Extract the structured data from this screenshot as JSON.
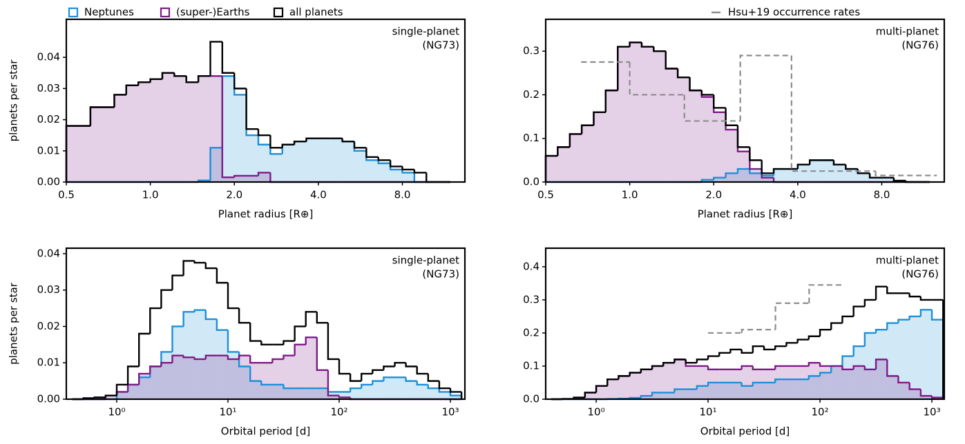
{
  "chart_data": [
    {
      "type": "histogram",
      "xlabel": "Planet radius [R⊕]",
      "ylabel": "planets per star",
      "annotation": [
        "single-planet",
        "(NG73)"
      ],
      "xscale": "log",
      "xlim": [
        0.5,
        13.4
      ],
      "ylim": [
        0,
        0.0522
      ],
      "xticks": [
        0.5,
        {
          "value": 1,
          "label": "1.0"
        },
        {
          "value": 2,
          "label": "2.0"
        },
        {
          "value": 4,
          "label": "4.0"
        },
        {
          "value": 8,
          "label": "8.0"
        }
      ],
      "yticks": [
        {
          "value": 0,
          "label": "0.00"
        },
        {
          "value": 0.01,
          "label": "0.01"
        },
        {
          "value": 0.02,
          "label": "0.02"
        },
        {
          "value": 0.03,
          "label": "0.03"
        },
        {
          "value": 0.04,
          "label": "0.04"
        }
      ],
      "bins": [
        0.5,
        0.552,
        0.61,
        0.673,
        0.743,
        0.82,
        0.906,
        1.0,
        1.104,
        1.219,
        1.346,
        1.486,
        1.641,
        1.811,
        2.0,
        2.208,
        2.438,
        2.692,
        2.972,
        3.281,
        3.623,
        4.0,
        4.416,
        4.876,
        5.383,
        5.944,
        6.563,
        7.246,
        8.0,
        8.833,
        9.752,
        10.767,
        11.888
      ],
      "series": [
        {
          "name": "Neptunes",
          "color": "#1a8fd8",
          "filled": true,
          "values": [
            0,
            0,
            0,
            0,
            0,
            0,
            0,
            0,
            0,
            0,
            0,
            0.0005,
            0.011,
            0.034,
            0.028,
            0.015,
            0.012,
            0.009,
            0.012,
            0.013,
            0.014,
            0.014,
            0.014,
            0.013,
            0.01,
            0.007,
            0.006,
            0.004,
            0.003,
            0,
            0,
            0
          ]
        },
        {
          "name": "(super-)Earths",
          "color": "#7d1a85",
          "filled": true,
          "values": [
            0.018,
            0.018,
            0.024,
            0.024,
            0.028,
            0.031,
            0.032,
            0.033,
            0.035,
            0.034,
            0.032,
            0.034,
            0.034,
            0.0015,
            0.002,
            0.002,
            0.003,
            0,
            0,
            0,
            0,
            0,
            0,
            0,
            0,
            0,
            0,
            0,
            0,
            0,
            0,
            0
          ]
        },
        {
          "name": "all planets",
          "color": "#000000",
          "filled": false,
          "values": [
            0.018,
            0.018,
            0.024,
            0.024,
            0.028,
            0.031,
            0.032,
            0.033,
            0.035,
            0.034,
            0.032,
            0.034,
            0.045,
            0.035,
            0.03,
            0.017,
            0.015,
            0.011,
            0.012,
            0.013,
            0.014,
            0.014,
            0.014,
            0.013,
            0.011,
            0.008,
            0.007,
            0.005,
            0.004,
            0.003,
            0,
            0
          ]
        }
      ]
    },
    {
      "type": "histogram",
      "xlabel": "Planet radius [R⊕]",
      "annotation": [
        "multi-planet",
        "(NG76)"
      ],
      "xscale": "log",
      "xlim": [
        0.5,
        13.4
      ],
      "ylim": [
        0,
        0.373
      ],
      "xticks": [
        0.5,
        {
          "value": 1,
          "label": "1.0"
        },
        {
          "value": 2,
          "label": "2.0"
        },
        {
          "value": 4,
          "label": "4.0"
        },
        {
          "value": 8,
          "label": "8.0"
        }
      ],
      "yticks": [
        {
          "value": 0,
          "label": "0.0"
        },
        0.1,
        0.2,
        0.3
      ],
      "bins": [
        0.5,
        0.552,
        0.61,
        0.673,
        0.743,
        0.82,
        0.906,
        1.0,
        1.104,
        1.219,
        1.346,
        1.486,
        1.641,
        1.811,
        2.0,
        2.208,
        2.438,
        2.692,
        2.972,
        3.281,
        3.623,
        4.0,
        4.416,
        4.876,
        5.383,
        5.944,
        6.563,
        7.246,
        8.0,
        8.833,
        9.752,
        10.767,
        11.888
      ],
      "series": [
        {
          "color": "#1a8fd8",
          "filled": true,
          "values": [
            0,
            0,
            0,
            0,
            0,
            0,
            0,
            0,
            0,
            0,
            0,
            0,
            0,
            0.005,
            0.01,
            0.02,
            0.03,
            0.02,
            0.015,
            0.03,
            0.03,
            0.04,
            0.05,
            0.05,
            0.04,
            0.03,
            0.02,
            0.01,
            0.01,
            0.003,
            0,
            0
          ]
        },
        {
          "color": "#7d1a85",
          "filled": true,
          "values": [
            0.06,
            0.08,
            0.11,
            0.13,
            0.16,
            0.21,
            0.31,
            0.32,
            0.31,
            0.3,
            0.26,
            0.24,
            0.21,
            0.195,
            0.16,
            0.12,
            0.07,
            0.03,
            0.01,
            0,
            0,
            0,
            0,
            0,
            0,
            0,
            0,
            0,
            0,
            0,
            0,
            0
          ]
        },
        {
          "color": "#000000",
          "filled": false,
          "values": [
            0.06,
            0.08,
            0.11,
            0.13,
            0.16,
            0.21,
            0.31,
            0.32,
            0.31,
            0.3,
            0.26,
            0.24,
            0.21,
            0.2,
            0.17,
            0.13,
            0.08,
            0.05,
            0.02,
            0.03,
            0.03,
            0.04,
            0.05,
            0.05,
            0.04,
            0.03,
            0.02,
            0.01,
            0.01,
            0.003,
            0,
            0
          ]
        },
        {
          "name": "Hsu+19 occurrence rates",
          "color": "#8c8c8c",
          "dashed": true,
          "bins": [
            0.67,
            1.0,
            1.57,
            2.49,
            3.8,
            7.6,
            12.6
          ],
          "values": [
            0.275,
            0.2,
            0.14,
            0.29,
            0.025,
            0.015
          ]
        }
      ]
    },
    {
      "type": "histogram",
      "xlabel": "Orbital period [d]",
      "ylabel": "planets per star",
      "annotation": [
        "single-planet",
        "(NG73)"
      ],
      "xscale": "log",
      "xlim": [
        0.352,
        1350
      ],
      "ylim": [
        0,
        0.0415
      ],
      "xticks": [
        {
          "value": 1,
          "label": "10⁰"
        },
        {
          "value": 10,
          "label": "10¹"
        },
        {
          "value": 100,
          "label": "10²"
        },
        {
          "value": 1000,
          "label": "10³"
        }
      ],
      "yticks": [
        {
          "value": 0,
          "label": "0.00"
        },
        {
          "value": 0.01,
          "label": "0.01"
        },
        {
          "value": 0.02,
          "label": "0.02"
        },
        {
          "value": 0.03,
          "label": "0.03"
        },
        {
          "value": 0.04,
          "label": "0.04"
        }
      ],
      "bins": [
        0.398,
        0.501,
        0.631,
        0.794,
        1,
        1.259,
        1.585,
        1.995,
        2.512,
        3.162,
        3.981,
        5.012,
        6.31,
        7.943,
        10,
        12.589,
        15.849,
        19.953,
        25.119,
        31.623,
        39.811,
        50.119,
        63.096,
        79.433,
        100,
        125.89,
        158.49,
        199.53,
        251.19,
        316.23,
        398.11,
        501.19,
        630.96,
        794.33,
        1000,
        1258.9
      ],
      "series": [
        {
          "color": "#1a8fd8",
          "filled": true,
          "values": [
            0,
            0,
            0,
            0,
            0.002,
            0.004,
            0.006,
            0.009,
            0.013,
            0.02,
            0.024,
            0.0245,
            0.022,
            0.019,
            0.013,
            0.009,
            0.005,
            0.004,
            0.004,
            0.003,
            0.003,
            0.003,
            0.003,
            0.002,
            0.002,
            0.003,
            0.004,
            0.005,
            0.006,
            0.006,
            0.005,
            0.004,
            0.003,
            0.002,
            0.001
          ]
        },
        {
          "color": "#7d1a85",
          "filled": true,
          "values": [
            0,
            0,
            0,
            0.001,
            0.002,
            0.004,
            0.007,
            0.009,
            0.01,
            0.012,
            0.0115,
            0.011,
            0.012,
            0.012,
            0.011,
            0.012,
            0.01,
            0.01,
            0.011,
            0.012,
            0.015,
            0.017,
            0.008,
            0.001,
            0.0005,
            0,
            0,
            0,
            0,
            0,
            0,
            0,
            0,
            0,
            0
          ]
        },
        {
          "color": "#000000",
          "filled": false,
          "values": [
            0,
            0.0003,
            0.0005,
            0.001,
            0.004,
            0.009,
            0.018,
            0.025,
            0.03,
            0.034,
            0.038,
            0.0375,
            0.036,
            0.032,
            0.025,
            0.021,
            0.016,
            0.015,
            0.015,
            0.016,
            0.02,
            0.024,
            0.021,
            0.011,
            0.007,
            0.005,
            0.007,
            0.008,
            0.009,
            0.01,
            0.009,
            0.007,
            0.005,
            0.003,
            0.002
          ]
        }
      ]
    },
    {
      "type": "histogram",
      "xlabel": "Orbital period [d]",
      "annotation": [
        "multi-planet",
        "(NG76)"
      ],
      "xscale": "log",
      "xlim": [
        0.354,
        1290
      ],
      "ylim": [
        0,
        0.456
      ],
      "xticks": [
        {
          "value": 1,
          "label": "10⁰"
        },
        {
          "value": 10,
          "label": "10¹"
        },
        {
          "value": 100,
          "label": "10²"
        },
        {
          "value": 1000,
          "label": "10³"
        }
      ],
      "yticks": [
        {
          "value": 0,
          "label": "0.0"
        },
        0.1,
        0.2,
        0.3,
        0.4
      ],
      "bins": [
        0.398,
        0.501,
        0.631,
        0.794,
        1,
        1.259,
        1.585,
        1.995,
        2.512,
        3.162,
        3.981,
        5.012,
        6.31,
        7.943,
        10,
        12.589,
        15.849,
        19.953,
        25.119,
        31.623,
        39.811,
        50.119,
        63.096,
        79.433,
        100,
        125.89,
        158.49,
        199.53,
        251.19,
        316.23,
        398.11,
        501.19,
        630.96,
        794.33,
        1000,
        1258.9
      ],
      "series": [
        {
          "color": "#1a8fd8",
          "filled": true,
          "values": [
            0,
            0,
            0,
            0,
            0,
            0.001,
            0.002,
            0.004,
            0.01,
            0.02,
            0.02,
            0.03,
            0.03,
            0.04,
            0.05,
            0.05,
            0.05,
            0.04,
            0.05,
            0.05,
            0.06,
            0.06,
            0.06,
            0.07,
            0.08,
            0.1,
            0.13,
            0.16,
            0.2,
            0.21,
            0.23,
            0.24,
            0.25,
            0.27,
            0.24
          ]
        },
        {
          "color": "#7d1a85",
          "filled": true,
          "values": [
            0,
            0.001,
            0.005,
            0.02,
            0.04,
            0.06,
            0.07,
            0.08,
            0.09,
            0.1,
            0.11,
            0.12,
            0.1,
            0.1,
            0.09,
            0.09,
            0.09,
            0.1,
            0.09,
            0.09,
            0.1,
            0.1,
            0.1,
            0.11,
            0.1,
            0.1,
            0.09,
            0.1,
            0.09,
            0.12,
            0.07,
            0.05,
            0.03,
            0.01,
            0.005
          ]
        },
        {
          "color": "#000000",
          "filled": false,
          "values": [
            0,
            0.001,
            0.005,
            0.02,
            0.04,
            0.06,
            0.07,
            0.08,
            0.09,
            0.1,
            0.11,
            0.12,
            0.11,
            0.12,
            0.13,
            0.14,
            0.15,
            0.14,
            0.16,
            0.15,
            0.16,
            0.17,
            0.18,
            0.19,
            0.21,
            0.23,
            0.25,
            0.28,
            0.3,
            0.34,
            0.32,
            0.32,
            0.31,
            0.3,
            0.3
          ]
        },
        {
          "color": "#8c8c8c",
          "dashed": true,
          "bins": [
            10,
            20,
            40,
            80,
            160
          ],
          "values": [
            0.2,
            0.21,
            0.29,
            0.345
          ]
        }
      ]
    }
  ]
}
